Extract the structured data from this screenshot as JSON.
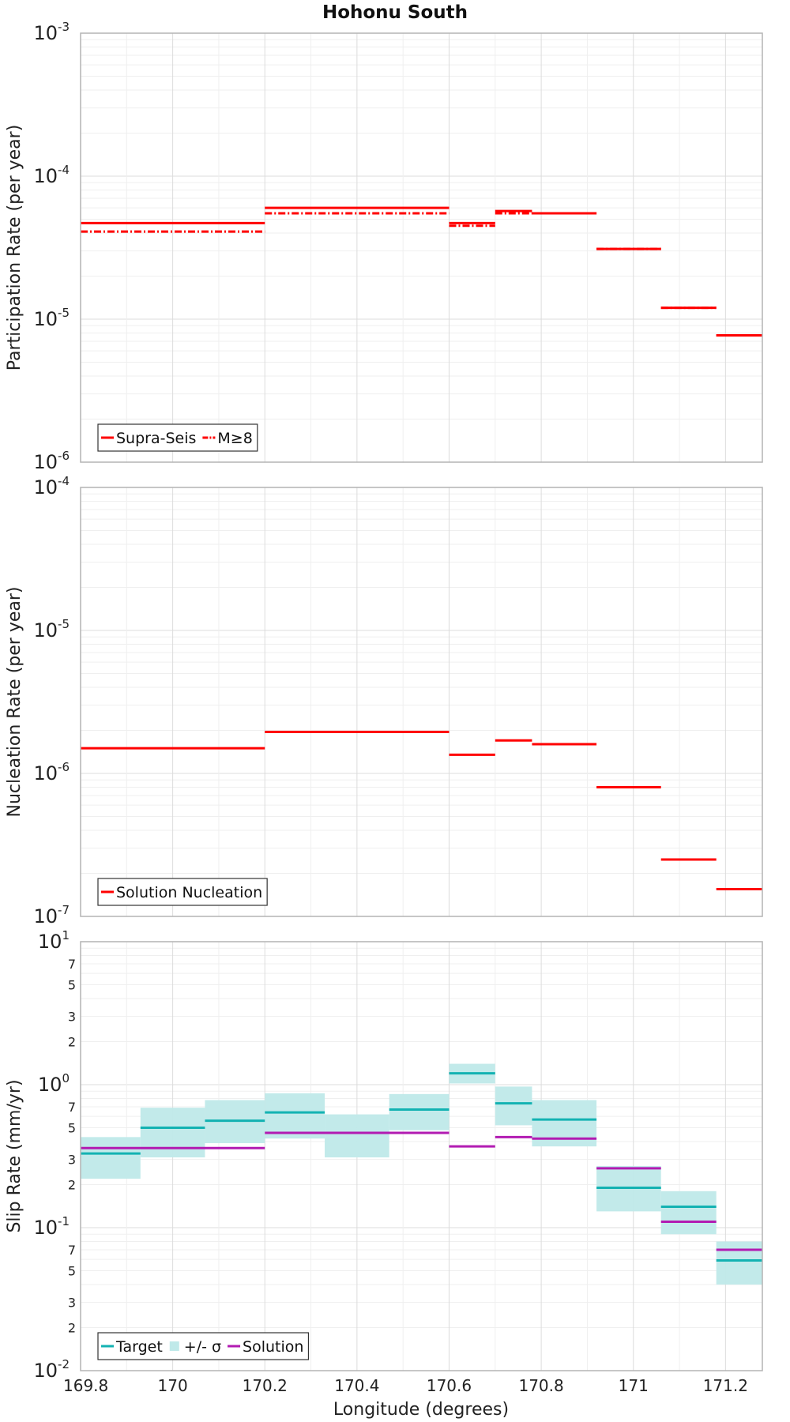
{
  "title": "Hohonu South",
  "xlabel": "Longitude (degrees)",
  "colors": {
    "red": "#ff0000",
    "target": "#13b2b2",
    "band": "#bfe9e9",
    "solution": "#b21bb2",
    "grid_major": "#dcdcdc",
    "grid_minor": "#efefef",
    "frame": "#b4b4b4"
  },
  "chart_data": [
    {
      "type": "line",
      "name": "participation",
      "xscale": "linear",
      "yscale": "log",
      "xlim": [
        169.8,
        171.28
      ],
      "ylim": [
        1e-06,
        0.001
      ],
      "ylabel": "Participation Rate (per year)",
      "xticks": [
        "169.8",
        "170",
        "170.2",
        "170.4",
        "170.6",
        "170.8",
        "171",
        "171.2"
      ],
      "yticks": [
        {
          "base": "10",
          "exp": "-3",
          "value": 0.001
        },
        {
          "base": "10",
          "exp": "-4",
          "value": 0.0001
        },
        {
          "base": "10",
          "exp": "-5",
          "value": 1e-05
        },
        {
          "base": "10",
          "exp": "-6",
          "value": 1e-06
        }
      ],
      "grid": true,
      "legend": {
        "placement": "bottom-left",
        "entries": [
          "Supra-Seis",
          "M≥8"
        ]
      },
      "series": [
        {
          "name": "Supra-Seis",
          "style": "solid",
          "segments": [
            [
              169.8,
              170.2,
              4.7e-05
            ],
            [
              170.2,
              170.6,
              6e-05
            ],
            [
              170.6,
              170.7,
              4.7e-05
            ],
            [
              170.7,
              170.78,
              5.7e-05
            ],
            [
              170.78,
              170.92,
              5.5e-05
            ],
            [
              170.92,
              171.06,
              3.1e-05
            ],
            [
              171.06,
              171.18,
              1.2e-05
            ],
            [
              171.18,
              171.28,
              7.7e-06
            ]
          ]
        },
        {
          "name": "M≥8",
          "style": "dashdot",
          "segments": [
            [
              169.8,
              170.2,
              4.1e-05
            ],
            [
              170.2,
              170.6,
              5.5e-05
            ],
            [
              170.6,
              170.7,
              4.5e-05
            ],
            [
              170.7,
              170.78,
              5.5e-05
            ],
            [
              170.78,
              170.92,
              5.5e-05
            ],
            [
              170.92,
              171.06,
              3.1e-05
            ],
            [
              171.06,
              171.18,
              1.2e-05
            ],
            [
              171.18,
              171.28,
              7.7e-06
            ]
          ]
        }
      ]
    },
    {
      "type": "line",
      "name": "nucleation",
      "xscale": "linear",
      "yscale": "log",
      "xlim": [
        169.8,
        171.28
      ],
      "ylim": [
        1e-07,
        0.0001
      ],
      "ylabel": "Nucleation Rate (per year)",
      "xticks": [
        "169.8",
        "170",
        "170.2",
        "170.4",
        "170.6",
        "170.8",
        "171",
        "171.2"
      ],
      "yticks": [
        {
          "base": "10",
          "exp": "-4",
          "value": 0.0001
        },
        {
          "base": "10",
          "exp": "-5",
          "value": 1e-05
        },
        {
          "base": "10",
          "exp": "-6",
          "value": 1e-06
        },
        {
          "base": "10",
          "exp": "-7",
          "value": 1e-07
        }
      ],
      "grid": true,
      "legend": {
        "placement": "bottom-left",
        "entries": [
          "Solution Nucleation"
        ]
      },
      "series": [
        {
          "name": "Solution Nucleation",
          "style": "solid",
          "segments": [
            [
              169.8,
              170.2,
              1.5e-06
            ],
            [
              170.2,
              170.6,
              1.95e-06
            ],
            [
              170.6,
              170.7,
              1.35e-06
            ],
            [
              170.7,
              170.78,
              1.7e-06
            ],
            [
              170.78,
              170.92,
              1.6e-06
            ],
            [
              170.92,
              171.06,
              8e-07
            ],
            [
              171.06,
              171.18,
              2.5e-07
            ],
            [
              171.18,
              171.28,
              1.55e-07
            ]
          ]
        }
      ]
    },
    {
      "type": "line",
      "name": "slip",
      "xscale": "linear",
      "yscale": "log",
      "xlim": [
        169.8,
        171.28
      ],
      "ylim": [
        0.01,
        10
      ],
      "ylabel": "Slip Rate (mm/yr)",
      "xticks": [
        "169.8",
        "170",
        "170.2",
        "170.4",
        "170.6",
        "170.8",
        "171",
        "171.2"
      ],
      "yticks": [
        {
          "base": "10",
          "exp": "1",
          "value": 10
        },
        {
          "base": "10",
          "exp": "0",
          "value": 1
        },
        {
          "base": "10",
          "exp": "-1",
          "value": 0.1
        },
        {
          "base": "10",
          "exp": "-2",
          "value": 0.01
        }
      ],
      "minor_tick_labels": [
        "7",
        "5",
        "3",
        "2"
      ],
      "grid": true,
      "legend": {
        "placement": "bottom-left",
        "entries": [
          "Target",
          "+/- σ",
          "Solution"
        ]
      },
      "target": [
        [
          169.8,
          169.93,
          0.33,
          0.22,
          0.43
        ],
        [
          169.93,
          170.07,
          0.5,
          0.31,
          0.69
        ],
        [
          170.07,
          170.2,
          0.56,
          0.39,
          0.78
        ],
        [
          170.2,
          170.33,
          0.64,
          0.42,
          0.87
        ],
        [
          170.33,
          170.47,
          0.46,
          0.31,
          0.62
        ],
        [
          170.47,
          170.6,
          0.67,
          0.48,
          0.86
        ],
        [
          170.6,
          170.7,
          1.2,
          1.02,
          1.4
        ],
        [
          170.7,
          170.78,
          0.74,
          0.52,
          0.97
        ],
        [
          170.78,
          170.92,
          0.57,
          0.37,
          0.78
        ],
        [
          170.92,
          171.06,
          0.19,
          0.13,
          0.27
        ],
        [
          171.06,
          171.18,
          0.14,
          0.09,
          0.18
        ],
        [
          171.18,
          171.28,
          0.059,
          0.04,
          0.08
        ]
      ],
      "solution": [
        [
          169.8,
          170.2,
          0.36
        ],
        [
          170.2,
          170.6,
          0.46
        ],
        [
          170.6,
          170.7,
          0.37
        ],
        [
          170.7,
          170.78,
          0.43
        ],
        [
          170.78,
          170.92,
          0.42
        ],
        [
          170.92,
          171.06,
          0.26
        ],
        [
          171.06,
          171.18,
          0.11
        ],
        [
          171.18,
          171.28,
          0.07
        ]
      ]
    }
  ]
}
